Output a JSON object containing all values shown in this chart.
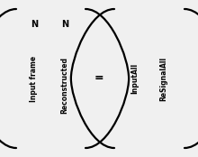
{
  "bg_color": "#f0f0f0",
  "text_color": "#000000",
  "fig_width": 2.2,
  "fig_height": 1.74,
  "dpi": 100,
  "left_matrix": {
    "col1_top": "N",
    "col1_bottom": "Input frame",
    "col2_top": "N",
    "col2_bottom": "Reconstructed"
  },
  "right_matrix": {
    "col1": "InputAll",
    "col2": "ReSignalAll"
  },
  "equal_sign": "=",
  "bracket_linewidth": 1.6,
  "N_fontsize": 7,
  "label_fontsize": 5.5,
  "equal_fontsize": 9
}
